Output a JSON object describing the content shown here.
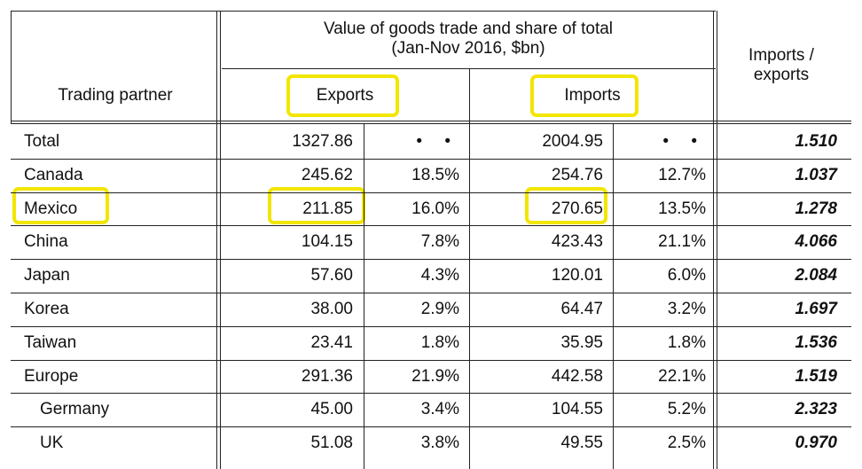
{
  "chart_data": {
    "type": "table",
    "title": "Value of goods trade and share of total (Jan-Nov 2016, $bn)",
    "title_line1": "Value of goods trade and share of total",
    "title_line2": "(Jan-Nov 2016, $bn)",
    "col_partner": "Trading partner",
    "col_exports": "Exports",
    "col_imports": "Imports",
    "col_ratio_line1": "Imports /",
    "col_ratio_line2": "exports",
    "rows": [
      {
        "partner": "Total",
        "exports": "1327.86",
        "exports_share": "• •",
        "imports": "2004.95",
        "imports_share": "• •",
        "ratio": "1.510"
      },
      {
        "partner": "Canada",
        "exports": "245.62",
        "exports_share": "18.5%",
        "imports": "254.76",
        "imports_share": "12.7%",
        "ratio": "1.037"
      },
      {
        "partner": "Mexico",
        "exports": "211.85",
        "exports_share": "16.0%",
        "imports": "270.65",
        "imports_share": "13.5%",
        "ratio": "1.278"
      },
      {
        "partner": "China",
        "exports": "104.15",
        "exports_share": "7.8%",
        "imports": "423.43",
        "imports_share": "21.1%",
        "ratio": "4.066"
      },
      {
        "partner": "Japan",
        "exports": "57.60",
        "exports_share": "4.3%",
        "imports": "120.01",
        "imports_share": "6.0%",
        "ratio": "2.084"
      },
      {
        "partner": "Korea",
        "exports": "38.00",
        "exports_share": "2.9%",
        "imports": "64.47",
        "imports_share": "3.2%",
        "ratio": "1.697"
      },
      {
        "partner": "Taiwan",
        "exports": "23.41",
        "exports_share": "1.8%",
        "imports": "35.95",
        "imports_share": "1.8%",
        "ratio": "1.536"
      },
      {
        "partner": "Europe",
        "exports": "291.36",
        "exports_share": "21.9%",
        "imports": "442.58",
        "imports_share": "22.1%",
        "ratio": "1.519"
      },
      {
        "partner": "Germany",
        "exports": "45.00",
        "exports_share": "3.4%",
        "imports": "104.55",
        "imports_share": "5.2%",
        "ratio": "2.323"
      },
      {
        "partner": "UK",
        "exports": "51.08",
        "exports_share": "3.8%",
        "imports": "49.55",
        "imports_share": "2.5%",
        "ratio": "0.970"
      }
    ],
    "highlight_color": "#f2e600"
  }
}
